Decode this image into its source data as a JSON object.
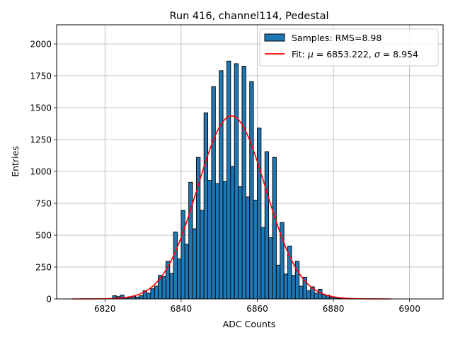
{
  "chart_data": {
    "type": "bar",
    "title": "Run 416, channel114, Pedestal",
    "xlabel": "ADC Counts",
    "ylabel": "Entries",
    "xlim": [
      6807.3,
      6908.8
    ],
    "ylim": [
      0,
      2150
    ],
    "xticks": [
      "6820",
      "6840",
      "6860",
      "6880",
      "6900"
    ],
    "yticks": [
      "0",
      "250",
      "500",
      "750",
      "1000",
      "1250",
      "1500",
      "1750",
      "2000"
    ],
    "grid": true,
    "legend_position": "top-right",
    "histogram": {
      "name": "Samples: RMS=8.98",
      "color": "#1f77b4",
      "bins": [
        {
          "x": 6822.5,
          "y": 25
        },
        {
          "x": 6823.5,
          "y": 18
        },
        {
          "x": 6824.5,
          "y": 30
        },
        {
          "x": 6825.5,
          "y": 10
        },
        {
          "x": 6826.5,
          "y": 8
        },
        {
          "x": 6827.5,
          "y": 20
        },
        {
          "x": 6828.5,
          "y": 15
        },
        {
          "x": 6829.5,
          "y": 25
        },
        {
          "x": 6830.5,
          "y": 65
        },
        {
          "x": 6831.5,
          "y": 45
        },
        {
          "x": 6832.5,
          "y": 80
        },
        {
          "x": 6833.5,
          "y": 100
        },
        {
          "x": 6834.5,
          "y": 185
        },
        {
          "x": 6835.5,
          "y": 175
        },
        {
          "x": 6836.5,
          "y": 295
        },
        {
          "x": 6837.5,
          "y": 200
        },
        {
          "x": 6838.5,
          "y": 525
        },
        {
          "x": 6839.5,
          "y": 315
        },
        {
          "x": 6840.5,
          "y": 695
        },
        {
          "x": 6841.5,
          "y": 430
        },
        {
          "x": 6842.5,
          "y": 915
        },
        {
          "x": 6843.5,
          "y": 550
        },
        {
          "x": 6844.5,
          "y": 1110
        },
        {
          "x": 6845.5,
          "y": 695
        },
        {
          "x": 6846.5,
          "y": 1460
        },
        {
          "x": 6847.5,
          "y": 930
        },
        {
          "x": 6848.5,
          "y": 1665
        },
        {
          "x": 6849.5,
          "y": 905
        },
        {
          "x": 6850.5,
          "y": 1790
        },
        {
          "x": 6851.5,
          "y": 920
        },
        {
          "x": 6852.5,
          "y": 1865
        },
        {
          "x": 6853.5,
          "y": 1040
        },
        {
          "x": 6854.5,
          "y": 1845
        },
        {
          "x": 6855.5,
          "y": 880
        },
        {
          "x": 6856.5,
          "y": 1825
        },
        {
          "x": 6857.5,
          "y": 800
        },
        {
          "x": 6858.5,
          "y": 1705
        },
        {
          "x": 6859.5,
          "y": 775
        },
        {
          "x": 6860.5,
          "y": 1340
        },
        {
          "x": 6861.5,
          "y": 560
        },
        {
          "x": 6862.5,
          "y": 1155
        },
        {
          "x": 6863.5,
          "y": 480
        },
        {
          "x": 6864.5,
          "y": 1110
        },
        {
          "x": 6865.5,
          "y": 265
        },
        {
          "x": 6866.5,
          "y": 600
        },
        {
          "x": 6867.5,
          "y": 195
        },
        {
          "x": 6868.5,
          "y": 415
        },
        {
          "x": 6869.5,
          "y": 185
        },
        {
          "x": 6870.5,
          "y": 295
        },
        {
          "x": 6871.5,
          "y": 100
        },
        {
          "x": 6872.5,
          "y": 170
        },
        {
          "x": 6873.5,
          "y": 65
        },
        {
          "x": 6874.5,
          "y": 95
        },
        {
          "x": 6875.5,
          "y": 45
        },
        {
          "x": 6876.5,
          "y": 75
        },
        {
          "x": 6877.5,
          "y": 35
        },
        {
          "x": 6878.5,
          "y": 30
        },
        {
          "x": 6879.5,
          "y": 15
        },
        {
          "x": 6880.5,
          "y": 10
        },
        {
          "x": 6881.5,
          "y": 5
        },
        {
          "x": 6882.5,
          "y": 3
        }
      ],
      "bin_width": 1
    },
    "fit": {
      "name_prefix": "Fit: ",
      "mu_symbol": "μ",
      "mu_text": " = 6853.222, ",
      "sigma_symbol": "σ",
      "sigma_text": " = 8.954",
      "mu": 6853.222,
      "sigma": 8.954,
      "peak": 1435,
      "x_range": [
        6811.2,
        6895.2
      ],
      "color": "#ff0000"
    }
  }
}
